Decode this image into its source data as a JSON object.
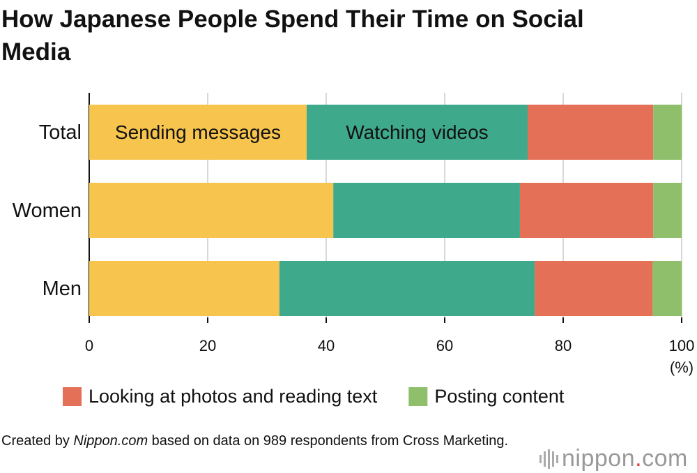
{
  "chart_data": {
    "type": "stacked-barh",
    "title": "How Japanese People Spend Their Time on Social Media",
    "categories": [
      "Total",
      "Women",
      "Men"
    ],
    "series": [
      {
        "name": "Sending messages",
        "color": "#f7c44e",
        "label": "in-bar",
        "values": [
          36.7,
          41.2,
          32.1
        ]
      },
      {
        "name": "Watching videos",
        "color": "#3fa98b",
        "label": "in-bar",
        "values": [
          37.3,
          31.5,
          43.1
        ]
      },
      {
        "name": "Looking at photos and reading text",
        "color": "#e37057",
        "label": "legend",
        "values": [
          21.2,
          22.5,
          19.9
        ]
      },
      {
        "name": "Posting content",
        "color": "#8fbf6a",
        "label": "legend",
        "values": [
          4.8,
          4.8,
          4.9
        ]
      }
    ],
    "xlim": [
      0,
      100
    ],
    "xticks": [
      0,
      20,
      40,
      60,
      80,
      100
    ],
    "xlabel": "(%)",
    "grid": true,
    "source": {
      "before": "Created by ",
      "name": "Nippon.com",
      "after": " based on data on 989 respondents from Cross Marketing."
    },
    "logo": {
      "main": "nippon",
      "dot": ".",
      "end": "com"
    }
  }
}
